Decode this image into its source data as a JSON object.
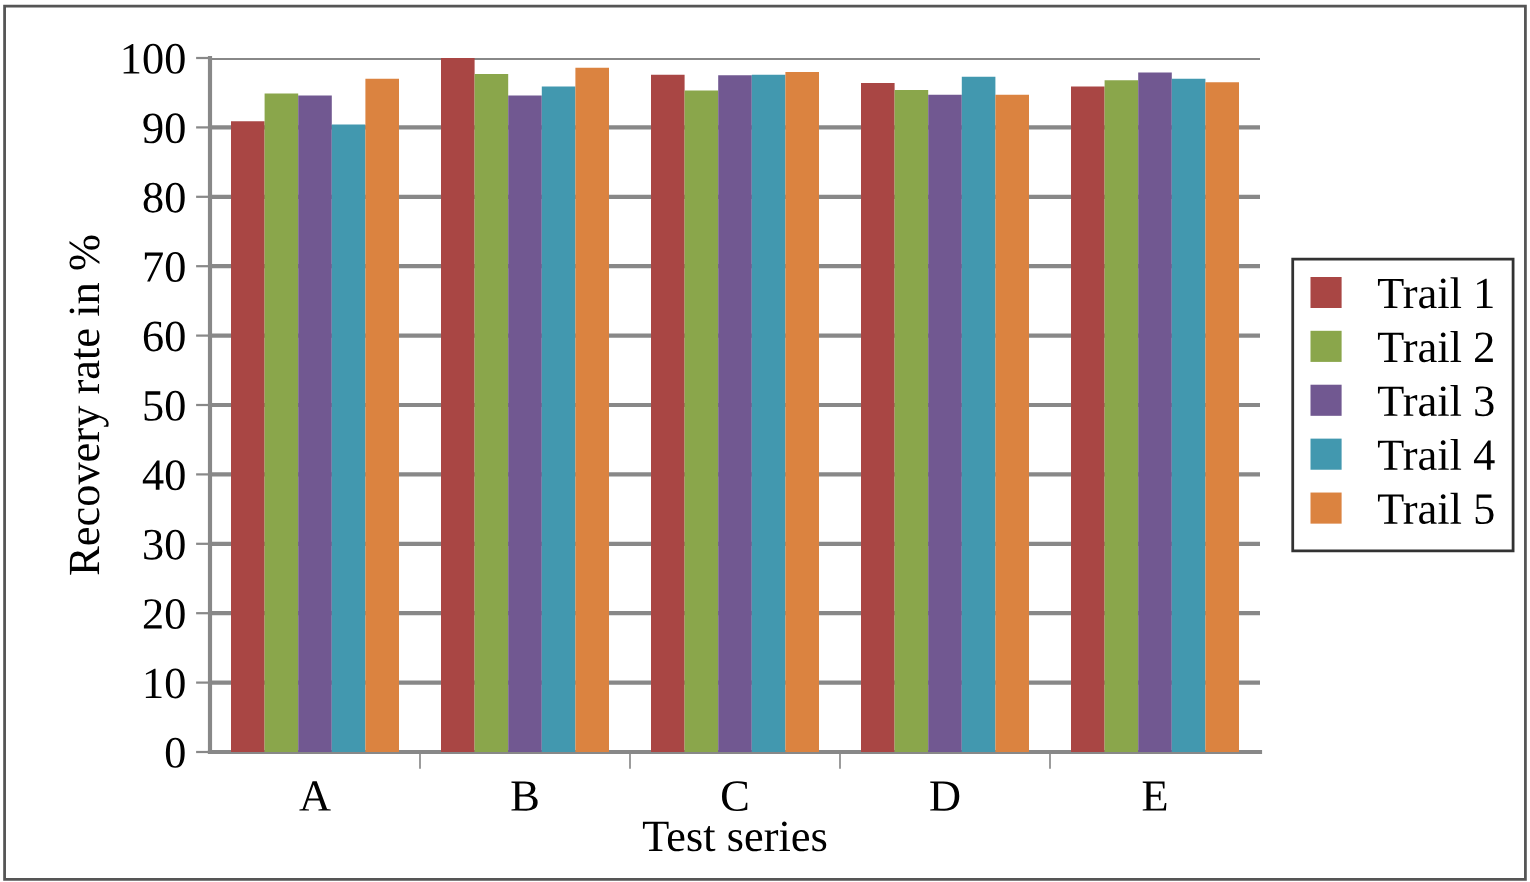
{
  "chart_data": {
    "type": "bar",
    "xlabel": "Test series",
    "ylabel": "Recovery rate in %",
    "categories": [
      "A",
      "B",
      "C",
      "D",
      "E"
    ],
    "series": [
      {
        "name": "Trail 1",
        "color": "#a94644",
        "values": [
          90.9,
          100,
          97.6,
          96.4,
          95.9
        ]
      },
      {
        "name": "Trail 2",
        "color": "#8aa64b",
        "values": [
          94.9,
          97.7,
          95.3,
          95.4,
          96.8
        ]
      },
      {
        "name": "Trail 3",
        "color": "#715891",
        "values": [
          94.6,
          94.6,
          97.5,
          94.7,
          97.9
        ]
      },
      {
        "name": "Trail 4",
        "color": "#4298af",
        "values": [
          90.4,
          95.9,
          97.6,
          97.3,
          97.0
        ]
      },
      {
        "name": "Trail 5",
        "color": "#db8340",
        "values": [
          97.0,
          98.6,
          98.0,
          94.7,
          96.5
        ]
      }
    ],
    "ylim": [
      0,
      100
    ],
    "yticks": [
      0,
      10,
      20,
      30,
      40,
      50,
      60,
      70,
      80,
      90,
      100
    ],
    "grid": "y",
    "legend": "right"
  }
}
